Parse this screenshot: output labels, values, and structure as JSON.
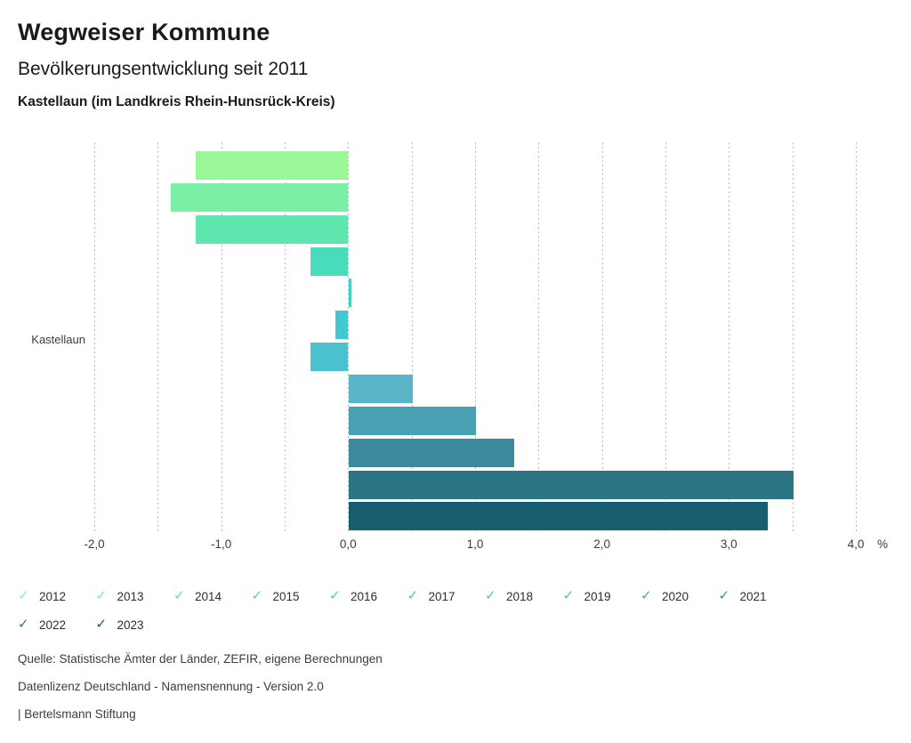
{
  "header": {
    "title": "Wegweiser Kommune",
    "subtitle": "Bevölkerungsentwicklung seit 2011",
    "location": "Kastellaun (im Landkreis Rhein-Hunsrück-Kreis)"
  },
  "chart_data": {
    "type": "bar",
    "orientation": "horizontal",
    "title": "Bevölkerungsentwicklung seit 2011",
    "category_label": "Kastellaun",
    "unit": "%",
    "xlim": [
      -2.0,
      4.0
    ],
    "grid_step": 0.5,
    "grid_style": "dashed",
    "x_ticks": [
      {
        "label": "-2,0",
        "value": -2.0
      },
      {
        "label": "-1,0",
        "value": -1.0
      },
      {
        "label": "0,0",
        "value": 0.0
      },
      {
        "label": "1,0",
        "value": 1.0
      },
      {
        "label": "2,0",
        "value": 2.0
      },
      {
        "label": "3,0",
        "value": 3.0
      },
      {
        "label": "4,0",
        "value": 4.0
      }
    ],
    "axis_unit_label": "%",
    "series": [
      {
        "name": "2012",
        "value": -1.2,
        "color": "#99F798"
      },
      {
        "name": "2013",
        "value": -1.4,
        "color": "#7BEFA5"
      },
      {
        "name": "2014",
        "value": -1.2,
        "color": "#5EE6AE"
      },
      {
        "name": "2015",
        "value": -0.3,
        "color": "#49DCBA"
      },
      {
        "name": "2016",
        "value": 0.0,
        "color": "#3DD2C6"
      },
      {
        "name": "2017",
        "value": -0.1,
        "color": "#40C9D0"
      },
      {
        "name": "2018",
        "value": -0.3,
        "color": "#4BC0CE"
      },
      {
        "name": "2019",
        "value": 0.5,
        "color": "#5BB5C8"
      },
      {
        "name": "2020",
        "value": 1.0,
        "color": "#4AA1B3"
      },
      {
        "name": "2021",
        "value": 1.3,
        "color": "#3B8B9D"
      },
      {
        "name": "2022",
        "value": 3.5,
        "color": "#2B7585"
      },
      {
        "name": "2023",
        "value": 3.3,
        "color": "#175E6E"
      }
    ],
    "legend_position": "bottom"
  },
  "legend": {
    "check_glyph": "✓",
    "rows": [
      [
        {
          "year": "2012",
          "color": "#8CF29A"
        },
        {
          "year": "2013",
          "color": "#7BEFA5"
        },
        {
          "year": "2014",
          "color": "#5EE6AE"
        },
        {
          "year": "2015",
          "color": "#49DCBA"
        },
        {
          "year": "2016",
          "color": "#3DD2C6"
        },
        {
          "year": "2017",
          "color": "#40C9D0"
        },
        {
          "year": "2018",
          "color": "#4BC0CE"
        },
        {
          "year": "2019",
          "color": "#5BB5C8"
        },
        {
          "year": "2020",
          "color": "#4AA1B3"
        },
        {
          "year": "2021",
          "color": "#3B8B9D"
        }
      ],
      [
        {
          "year": "2022",
          "color": "#2B7585"
        },
        {
          "year": "2023",
          "color": "#175E6E"
        }
      ]
    ]
  },
  "footer": {
    "source": "Quelle: Statistische Ämter der Länder, ZEFIR, eigene Berechnungen",
    "license": "Datenlizenz Deutschland - Namensnennung - Version 2.0",
    "attribution": "| Bertelsmann Stiftung"
  }
}
